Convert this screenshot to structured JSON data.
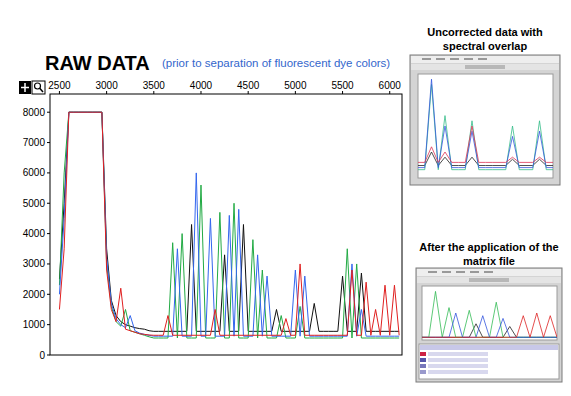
{
  "chart_data": [
    {
      "type": "line",
      "title": "RAW DATA",
      "subtitle": "(prior to separation of fluorescent dye colors)",
      "x": [
        2500,
        2550,
        2600,
        2650,
        2700,
        2750,
        2800,
        2850,
        2900,
        2950,
        3000,
        3050,
        3100,
        3150,
        3200,
        3250,
        3300,
        3350,
        3400,
        3450,
        3500,
        3550,
        3600,
        3650,
        3700,
        3750,
        3800,
        3850,
        3900,
        3950,
        4000,
        4050,
        4100,
        4150,
        4200,
        4250,
        4300,
        4350,
        4400,
        4450,
        4500,
        4550,
        4600,
        4650,
        4700,
        4750,
        4800,
        4850,
        4900,
        4950,
        5000,
        5050,
        5100,
        5150,
        5200,
        5250,
        5300,
        5350,
        5400,
        5450,
        5500,
        5550,
        5600,
        5650,
        5700,
        5750,
        5800,
        5850,
        5900,
        5950,
        6000,
        6050,
        6100
      ],
      "xlim": [
        2400,
        6130
      ],
      "ylim": [
        0,
        8600
      ],
      "xticks": [
        2500,
        3000,
        3500,
        4000,
        4500,
        5000,
        5500,
        6000
      ],
      "yticks": [
        0,
        1000,
        2000,
        3000,
        4000,
        5000,
        6000,
        7000,
        8000
      ],
      "series": [
        {
          "color": "#111111",
          "values": [
            2500,
            5000,
            8000,
            8000,
            8000,
            8000,
            8000,
            8000,
            8000,
            8000,
            3500,
            1800,
            1300,
            1100,
            1000,
            950,
            900,
            870,
            850,
            800,
            780,
            780,
            780,
            780,
            780,
            780,
            780,
            780,
            4300,
            780,
            780,
            780,
            780,
            780,
            780,
            3300,
            780,
            780,
            780,
            4300,
            780,
            780,
            780,
            780,
            780,
            780,
            1500,
            780,
            780,
            780,
            780,
            780,
            780,
            780,
            1700,
            780,
            780,
            780,
            780,
            780,
            2600,
            780,
            780,
            780,
            2700,
            780,
            780,
            780,
            780,
            780,
            780,
            780,
            780
          ]
        },
        {
          "color": "#22aa44",
          "values": [
            2300,
            6000,
            8000,
            8000,
            8000,
            8000,
            8000,
            8000,
            8000,
            8000,
            3000,
            1600,
            1100,
            950,
            1500,
            800,
            750,
            700,
            650,
            600,
            560,
            560,
            560,
            560,
            3700,
            560,
            4000,
            560,
            560,
            560,
            5600,
            560,
            560,
            560,
            4700,
            560,
            560,
            5000,
            560,
            560,
            560,
            3800,
            560,
            2800,
            560,
            560,
            560,
            1300,
            560,
            560,
            560,
            1600,
            560,
            560,
            560,
            560,
            560,
            560,
            560,
            560,
            560,
            3500,
            560,
            3000,
            560,
            560,
            560,
            560,
            560,
            560,
            560,
            560,
            560
          ]
        },
        {
          "color": "#3366ee",
          "values": [
            2000,
            4500,
            8000,
            8000,
            8000,
            8000,
            8000,
            8000,
            8000,
            8000,
            3200,
            1700,
            1200,
            1000,
            900,
            1300,
            800,
            720,
            680,
            650,
            620,
            620,
            620,
            620,
            620,
            3500,
            620,
            620,
            620,
            6000,
            620,
            620,
            4500,
            620,
            620,
            620,
            4600,
            620,
            4800,
            620,
            620,
            620,
            3300,
            620,
            2600,
            620,
            620,
            620,
            620,
            620,
            2800,
            620,
            2600,
            620,
            620,
            620,
            620,
            620,
            620,
            620,
            620,
            620,
            3000,
            620,
            1500,
            620,
            620,
            620,
            620,
            620,
            620,
            620,
            620
          ]
        },
        {
          "color": "#e02020",
          "values": [
            1500,
            3500,
            8000,
            8000,
            8000,
            8000,
            8000,
            8000,
            8000,
            8000,
            2800,
            1500,
            1100,
            2200,
            850,
            800,
            750,
            700,
            680,
            660,
            650,
            650,
            650,
            1300,
            650,
            650,
            650,
            650,
            650,
            650,
            650,
            650,
            650,
            1500,
            650,
            650,
            650,
            650,
            650,
            650,
            650,
            650,
            650,
            650,
            650,
            650,
            650,
            650,
            1200,
            650,
            650,
            3000,
            650,
            650,
            650,
            650,
            650,
            650,
            650,
            650,
            650,
            650,
            2800,
            650,
            650,
            2400,
            650,
            1500,
            650,
            2300,
            650,
            2300,
            650
          ]
        }
      ]
    },
    {
      "type": "line",
      "title": "Uncorrected data with spectral overlap",
      "x": [
        0,
        5,
        10,
        15,
        20,
        25,
        30,
        35,
        40,
        45,
        50,
        55,
        60,
        65,
        70,
        75,
        80,
        85,
        90,
        95,
        100
      ],
      "xlim": [
        0,
        100
      ],
      "ylim": [
        0,
        100
      ],
      "tick_labels": false,
      "series": [
        {
          "color": "#222222",
          "values": [
            12,
            12,
            25,
            12,
            20,
            12,
            12,
            12,
            20,
            12,
            12,
            12,
            12,
            12,
            18,
            12,
            12,
            12,
            18,
            12,
            12
          ]
        },
        {
          "color": "#33bb88",
          "values": [
            8,
            8,
            90,
            8,
            60,
            8,
            8,
            8,
            55,
            8,
            8,
            8,
            8,
            8,
            50,
            8,
            8,
            8,
            55,
            8,
            8
          ]
        },
        {
          "color": "#3355dd",
          "values": [
            10,
            10,
            95,
            10,
            50,
            10,
            10,
            10,
            45,
            10,
            10,
            10,
            10,
            10,
            40,
            10,
            10,
            10,
            45,
            10,
            10
          ]
        },
        {
          "color": "#dd3355",
          "values": [
            15,
            15,
            30,
            15,
            25,
            15,
            15,
            15,
            50,
            15,
            15,
            15,
            15,
            15,
            20,
            15,
            15,
            15,
            20,
            15,
            15
          ]
        }
      ]
    },
    {
      "type": "line",
      "title": "After the application of the matrix file",
      "x": [
        0,
        5,
        10,
        15,
        20,
        25,
        30,
        35,
        40,
        45,
        50,
        55,
        60,
        65,
        70,
        75,
        80,
        85,
        90,
        95,
        100
      ],
      "xlim": [
        0,
        100
      ],
      "ylim": [
        0,
        100
      ],
      "tick_labels": false,
      "series": [
        {
          "color": "#222222",
          "values": [
            5,
            5,
            5,
            5,
            5,
            5,
            5,
            5,
            30,
            5,
            5,
            5,
            5,
            25,
            5,
            5,
            5,
            5,
            5,
            5,
            5
          ]
        },
        {
          "color": "#33bb55",
          "values": [
            5,
            5,
            90,
            5,
            60,
            5,
            5,
            55,
            5,
            5,
            5,
            70,
            5,
            5,
            5,
            5,
            5,
            5,
            5,
            5,
            5
          ]
        },
        {
          "color": "#3355dd",
          "values": [
            5,
            5,
            5,
            5,
            5,
            50,
            5,
            5,
            5,
            45,
            5,
            5,
            40,
            5,
            5,
            5,
            5,
            5,
            5,
            5,
            5
          ]
        },
        {
          "color": "#dd2222",
          "values": [
            5,
            5,
            5,
            5,
            5,
            5,
            5,
            5,
            5,
            5,
            5,
            5,
            5,
            5,
            5,
            45,
            5,
            50,
            5,
            45,
            5
          ]
        }
      ]
    }
  ]
}
